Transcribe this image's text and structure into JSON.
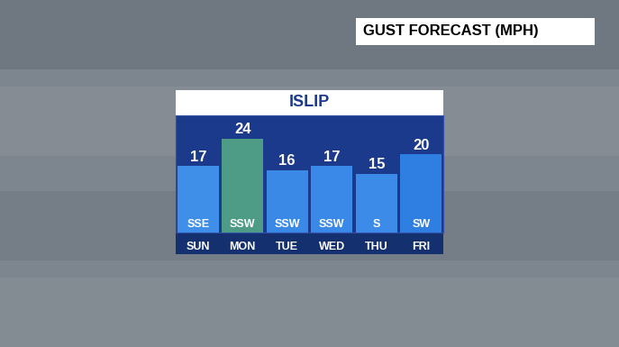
{
  "chart_data": {
    "type": "bar",
    "title": "ISLIP",
    "subtitle": "GUST FORECAST (MPH)",
    "categories": [
      "SUN",
      "MON",
      "TUE",
      "WED",
      "THU",
      "FRI"
    ],
    "values": [
      17,
      24,
      16,
      17,
      15,
      20
    ],
    "annotations": [
      "SSE",
      "SSW",
      "SSW",
      "SSW",
      "S",
      "SW"
    ],
    "colors": [
      "#3f8fe8",
      "#4f9c86",
      "#3a89e6",
      "#3a88e8",
      "#3d8be8",
      "#2f7fe2"
    ],
    "ylim": [
      0,
      30
    ],
    "data_labels": true,
    "tick_labels": "x",
    "grid": false
  }
}
